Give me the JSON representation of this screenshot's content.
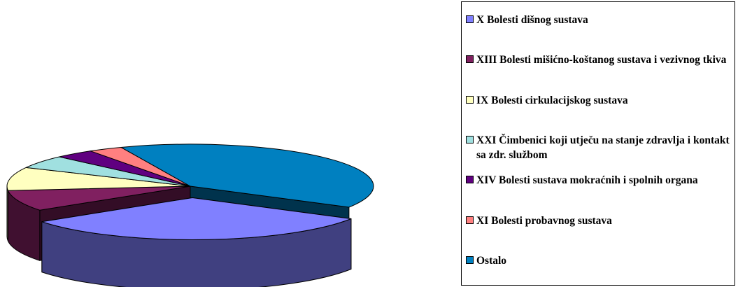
{
  "chart_data": {
    "type": "pie",
    "title": "",
    "legend_position": "right",
    "slices": [
      {
        "label": "X Bolesti dišnog sustava",
        "value": 32,
        "color": "#8080ff"
      },
      {
        "label": "XIII Bolesti mišićno-koštanog sustava i vezivnog tkiva",
        "value": 8,
        "color": "#802060"
      },
      {
        "label": "IX Bolesti cirkulacijskog sustava",
        "value": 9,
        "color": "#ffffc0"
      },
      {
        "label": "XXI Čimbenici koji utječu na stanje zdravlja i kontakt sa zdr. službom",
        "value": 5,
        "color": "#a0e0e0"
      },
      {
        "label": "XIV Bolesti sustava mokraćnih i spolnih organa",
        "value": 3.5,
        "color": "#600080"
      },
      {
        "label": "XI Bolesti probavnog sustava",
        "value": 3,
        "color": "#ff8080"
      },
      {
        "label": "Ostalo",
        "value": 39.5,
        "color": "#0080c0"
      }
    ]
  }
}
